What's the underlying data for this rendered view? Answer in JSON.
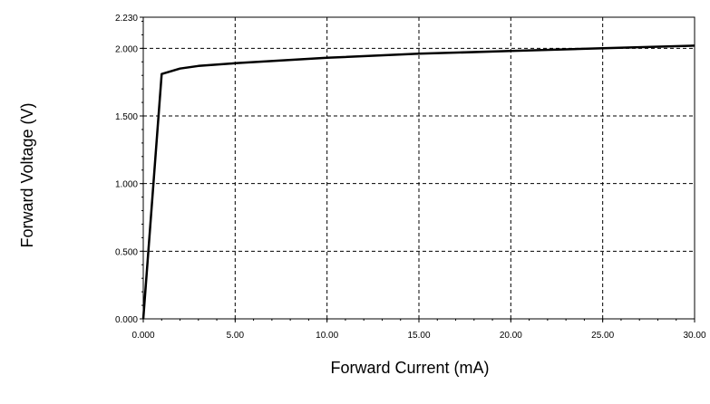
{
  "chart_data": {
    "type": "line",
    "title": "",
    "xlabel": "Forward Current (mA)",
    "ylabel": "Forward Voltage (V)",
    "xlim": [
      0,
      30
    ],
    "ylim": [
      0,
      2.23
    ],
    "grid": true,
    "grid_style": "dashed",
    "x_ticks": [
      0,
      5,
      10,
      15,
      20,
      25,
      30
    ],
    "x_tick_labels": [
      "0.000",
      "5.00",
      "10.00",
      "15.00",
      "20.00",
      "25.00",
      "30.00"
    ],
    "y_ticks": [
      0,
      0.5,
      1.0,
      1.5,
      2.0,
      2.23
    ],
    "y_tick_labels": [
      "0.000",
      "0.500",
      "1.000",
      "1.500",
      "2.000",
      "2.230"
    ],
    "series": [
      {
        "color": "#000000",
        "x": [
          0,
          1,
          1.5,
          2,
          3,
          5,
          10,
          15,
          20,
          25,
          30
        ],
        "y": [
          0,
          1.81,
          1.83,
          1.85,
          1.87,
          1.89,
          1.93,
          1.96,
          1.98,
          2.0,
          2.02
        ]
      }
    ]
  }
}
